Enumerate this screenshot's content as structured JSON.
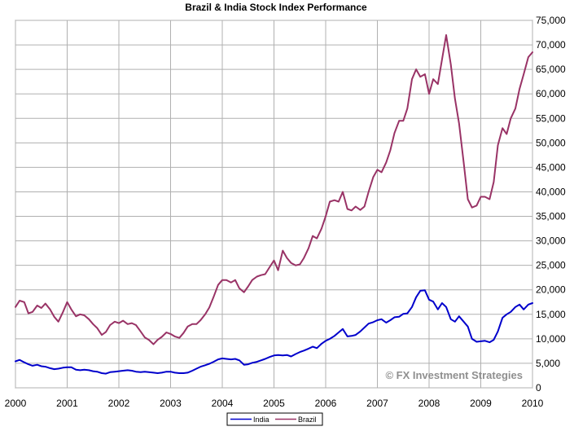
{
  "chart_data": {
    "type": "line",
    "title": "Brazil & India Stock Index Performance",
    "xlabel": "",
    "ylabel": "",
    "xlim": [
      2000,
      2010
    ],
    "ylim": [
      0,
      75000
    ],
    "x_ticks": [
      "2000",
      "2001",
      "2002",
      "2003",
      "2004",
      "2005",
      "2006",
      "2007",
      "2008",
      "2009",
      "2010"
    ],
    "y_ticks": [
      "0",
      "5,000",
      "10,000",
      "15,000",
      "20,000",
      "25,000",
      "30,000",
      "35,000",
      "40,000",
      "45,000",
      "50,000",
      "55,000",
      "60,000",
      "65,000",
      "70,000",
      "75,000"
    ],
    "y_axis_side": "right",
    "grid": true,
    "legend_position": "bottom-center",
    "watermark": "© FX Investment Strategies",
    "series": [
      {
        "name": "India",
        "color": "#0000cc",
        "points": [
          [
            2000.0,
            5400
          ],
          [
            2000.08,
            5700
          ],
          [
            2000.17,
            5200
          ],
          [
            2000.25,
            4800
          ],
          [
            2000.33,
            4500
          ],
          [
            2000.42,
            4700
          ],
          [
            2000.5,
            4400
          ],
          [
            2000.58,
            4300
          ],
          [
            2000.67,
            4000
          ],
          [
            2000.75,
            3800
          ],
          [
            2000.83,
            3900
          ],
          [
            2000.92,
            4100
          ],
          [
            2001.0,
            4200
          ],
          [
            2001.08,
            4200
          ],
          [
            2001.17,
            3700
          ],
          [
            2001.25,
            3600
          ],
          [
            2001.33,
            3700
          ],
          [
            2001.42,
            3600
          ],
          [
            2001.5,
            3400
          ],
          [
            2001.58,
            3300
          ],
          [
            2001.67,
            3000
          ],
          [
            2001.75,
            2900
          ],
          [
            2001.83,
            3200
          ],
          [
            2001.92,
            3300
          ],
          [
            2002.0,
            3400
          ],
          [
            2002.08,
            3500
          ],
          [
            2002.17,
            3600
          ],
          [
            2002.25,
            3500
          ],
          [
            2002.33,
            3300
          ],
          [
            2002.42,
            3200
          ],
          [
            2002.5,
            3300
          ],
          [
            2002.58,
            3200
          ],
          [
            2002.67,
            3100
          ],
          [
            2002.75,
            3000
          ],
          [
            2002.83,
            3100
          ],
          [
            2002.92,
            3300
          ],
          [
            2003.0,
            3300
          ],
          [
            2003.08,
            3100
          ],
          [
            2003.17,
            3000
          ],
          [
            2003.25,
            3000
          ],
          [
            2003.33,
            3100
          ],
          [
            2003.42,
            3500
          ],
          [
            2003.5,
            3900
          ],
          [
            2003.58,
            4300
          ],
          [
            2003.67,
            4600
          ],
          [
            2003.75,
            4900
          ],
          [
            2003.83,
            5300
          ],
          [
            2003.92,
            5800
          ],
          [
            2004.0,
            6000
          ],
          [
            2004.08,
            5900
          ],
          [
            2004.17,
            5800
          ],
          [
            2004.25,
            5900
          ],
          [
            2004.33,
            5600
          ],
          [
            2004.42,
            4700
          ],
          [
            2004.5,
            4800
          ],
          [
            2004.58,
            5100
          ],
          [
            2004.67,
            5300
          ],
          [
            2004.75,
            5600
          ],
          [
            2004.83,
            5900
          ],
          [
            2004.92,
            6300
          ],
          [
            2005.0,
            6600
          ],
          [
            2005.08,
            6700
          ],
          [
            2005.17,
            6600
          ],
          [
            2005.25,
            6700
          ],
          [
            2005.33,
            6400
          ],
          [
            2005.42,
            6900
          ],
          [
            2005.5,
            7300
          ],
          [
            2005.58,
            7600
          ],
          [
            2005.67,
            8000
          ],
          [
            2005.75,
            8400
          ],
          [
            2005.83,
            8100
          ],
          [
            2005.92,
            9000
          ],
          [
            2006.0,
            9600
          ],
          [
            2006.08,
            10000
          ],
          [
            2006.17,
            10600
          ],
          [
            2006.25,
            11300
          ],
          [
            2006.33,
            12000
          ],
          [
            2006.42,
            10500
          ],
          [
            2006.5,
            10600
          ],
          [
            2006.58,
            10800
          ],
          [
            2006.67,
            11500
          ],
          [
            2006.75,
            12300
          ],
          [
            2006.83,
            13100
          ],
          [
            2006.92,
            13400
          ],
          [
            2007.0,
            13800
          ],
          [
            2007.08,
            14000
          ],
          [
            2007.17,
            13300
          ],
          [
            2007.25,
            13800
          ],
          [
            2007.33,
            14400
          ],
          [
            2007.42,
            14500
          ],
          [
            2007.5,
            15100
          ],
          [
            2007.58,
            15200
          ],
          [
            2007.67,
            16500
          ],
          [
            2007.75,
            18500
          ],
          [
            2007.83,
            19800
          ],
          [
            2007.92,
            19900
          ],
          [
            2008.0,
            18000
          ],
          [
            2008.08,
            17600
          ],
          [
            2008.17,
            16000
          ],
          [
            2008.25,
            17300
          ],
          [
            2008.33,
            16500
          ],
          [
            2008.42,
            14000
          ],
          [
            2008.5,
            13500
          ],
          [
            2008.58,
            14600
          ],
          [
            2008.67,
            13500
          ],
          [
            2008.75,
            12500
          ],
          [
            2008.83,
            10000
          ],
          [
            2008.92,
            9400
          ],
          [
            2009.0,
            9500
          ],
          [
            2009.08,
            9600
          ],
          [
            2009.17,
            9300
          ],
          [
            2009.25,
            9800
          ],
          [
            2009.33,
            11500
          ],
          [
            2009.42,
            14300
          ],
          [
            2009.5,
            15000
          ],
          [
            2009.58,
            15500
          ],
          [
            2009.67,
            16500
          ],
          [
            2009.75,
            17000
          ],
          [
            2009.83,
            16000
          ],
          [
            2009.92,
            17000
          ],
          [
            2010.0,
            17300
          ]
        ]
      },
      {
        "name": "Brazil",
        "color": "#993366",
        "points": [
          [
            2000.0,
            16500
          ],
          [
            2000.08,
            17800
          ],
          [
            2000.17,
            17500
          ],
          [
            2000.25,
            15200
          ],
          [
            2000.33,
            15500
          ],
          [
            2000.42,
            16800
          ],
          [
            2000.5,
            16300
          ],
          [
            2000.58,
            17200
          ],
          [
            2000.67,
            16000
          ],
          [
            2000.75,
            14500
          ],
          [
            2000.83,
            13500
          ],
          [
            2000.92,
            15500
          ],
          [
            2001.0,
            17500
          ],
          [
            2001.08,
            16000
          ],
          [
            2001.17,
            14600
          ],
          [
            2001.25,
            15000
          ],
          [
            2001.33,
            14800
          ],
          [
            2001.42,
            14000
          ],
          [
            2001.5,
            13000
          ],
          [
            2001.58,
            12200
          ],
          [
            2001.67,
            10800
          ],
          [
            2001.75,
            11400
          ],
          [
            2001.83,
            12800
          ],
          [
            2001.92,
            13500
          ],
          [
            2002.0,
            13200
          ],
          [
            2002.08,
            13700
          ],
          [
            2002.17,
            13000
          ],
          [
            2002.25,
            13200
          ],
          [
            2002.33,
            12800
          ],
          [
            2002.42,
            11500
          ],
          [
            2002.5,
            10300
          ],
          [
            2002.58,
            9800
          ],
          [
            2002.67,
            8900
          ],
          [
            2002.75,
            9800
          ],
          [
            2002.83,
            10400
          ],
          [
            2002.92,
            11300
          ],
          [
            2003.0,
            11000
          ],
          [
            2003.08,
            10500
          ],
          [
            2003.17,
            10200
          ],
          [
            2003.25,
            11200
          ],
          [
            2003.33,
            12500
          ],
          [
            2003.42,
            13000
          ],
          [
            2003.5,
            13000
          ],
          [
            2003.58,
            13800
          ],
          [
            2003.67,
            15000
          ],
          [
            2003.75,
            16400
          ],
          [
            2003.83,
            18500
          ],
          [
            2003.92,
            21000
          ],
          [
            2004.0,
            22000
          ],
          [
            2004.08,
            22000
          ],
          [
            2004.17,
            21500
          ],
          [
            2004.25,
            22000
          ],
          [
            2004.33,
            20300
          ],
          [
            2004.42,
            19500
          ],
          [
            2004.5,
            20700
          ],
          [
            2004.58,
            22000
          ],
          [
            2004.67,
            22700
          ],
          [
            2004.75,
            23000
          ],
          [
            2004.83,
            23200
          ],
          [
            2004.92,
            24700
          ],
          [
            2005.0,
            26000
          ],
          [
            2005.08,
            24000
          ],
          [
            2005.17,
            28000
          ],
          [
            2005.25,
            26500
          ],
          [
            2005.33,
            25500
          ],
          [
            2005.42,
            25000
          ],
          [
            2005.5,
            25200
          ],
          [
            2005.58,
            26500
          ],
          [
            2005.67,
            28500
          ],
          [
            2005.75,
            31000
          ],
          [
            2005.83,
            30500
          ],
          [
            2005.92,
            32500
          ],
          [
            2006.0,
            35000
          ],
          [
            2006.08,
            38000
          ],
          [
            2006.17,
            38300
          ],
          [
            2006.25,
            38000
          ],
          [
            2006.33,
            40000
          ],
          [
            2006.42,
            36500
          ],
          [
            2006.5,
            36200
          ],
          [
            2006.58,
            37000
          ],
          [
            2006.67,
            36300
          ],
          [
            2006.75,
            37000
          ],
          [
            2006.83,
            40000
          ],
          [
            2006.92,
            43000
          ],
          [
            2007.0,
            44500
          ],
          [
            2007.08,
            44000
          ],
          [
            2007.17,
            46000
          ],
          [
            2007.25,
            48500
          ],
          [
            2007.33,
            52000
          ],
          [
            2007.42,
            54500
          ],
          [
            2007.5,
            54500
          ],
          [
            2007.58,
            57000
          ],
          [
            2007.67,
            63000
          ],
          [
            2007.75,
            65000
          ],
          [
            2007.83,
            63500
          ],
          [
            2007.92,
            64000
          ],
          [
            2008.0,
            60000
          ],
          [
            2008.08,
            63000
          ],
          [
            2008.17,
            62000
          ],
          [
            2008.25,
            67000
          ],
          [
            2008.33,
            72000
          ],
          [
            2008.42,
            66000
          ],
          [
            2008.5,
            59000
          ],
          [
            2008.58,
            54000
          ],
          [
            2008.67,
            46000
          ],
          [
            2008.75,
            38500
          ],
          [
            2008.83,
            36800
          ],
          [
            2008.92,
            37200
          ],
          [
            2009.0,
            39000
          ],
          [
            2009.08,
            39000
          ],
          [
            2009.17,
            38500
          ],
          [
            2009.25,
            42000
          ],
          [
            2009.33,
            49500
          ],
          [
            2009.42,
            53000
          ],
          [
            2009.5,
            51800
          ],
          [
            2009.58,
            55000
          ],
          [
            2009.67,
            57000
          ],
          [
            2009.75,
            61000
          ],
          [
            2009.83,
            64000
          ],
          [
            2009.92,
            67500
          ],
          [
            2010.0,
            68500
          ]
        ]
      }
    ]
  }
}
